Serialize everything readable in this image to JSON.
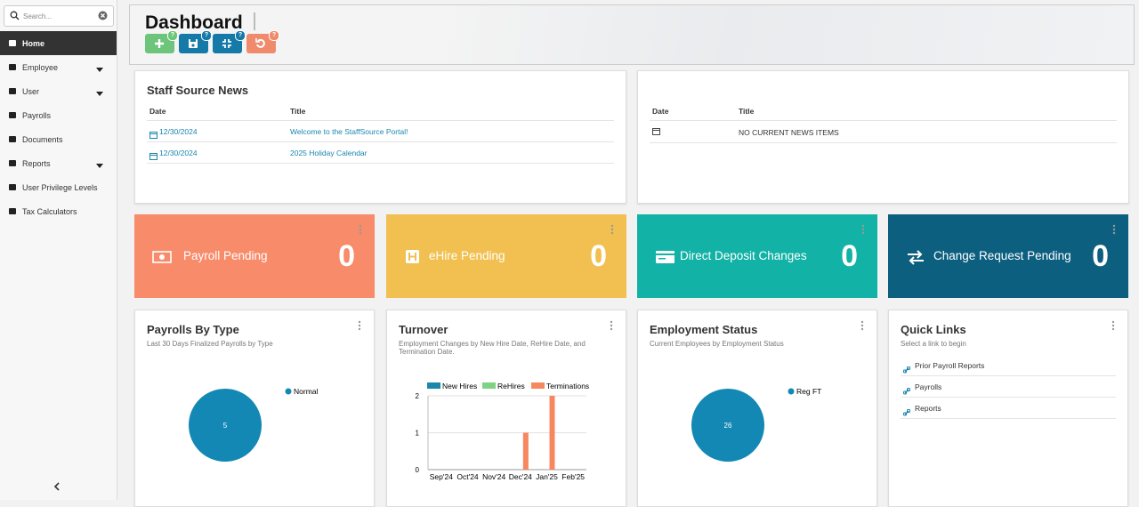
{
  "sidebar": {
    "search_placeholder": "Search...",
    "nav": [
      "Home",
      "Employee",
      "User",
      "Payrolls",
      "Documents",
      "Reports",
      "User Privilege Levels",
      "Tax Calculators"
    ]
  },
  "header": {
    "title": "Dashboard",
    "badge": "?"
  },
  "news": {
    "title": "Staff Source News",
    "columns": [
      "Date",
      "Title"
    ],
    "rows": [
      [
        "12/30/2024",
        "Welcome to the StaffSource Portal!"
      ],
      [
        "12/30/2024",
        "2025 Holiday Calendar"
      ]
    ]
  },
  "news2": {
    "columns": [
      "Date",
      "Title"
    ],
    "empty": "NO CURRENT NEWS ITEMS"
  },
  "tiles": [
    {
      "label": "Payroll Pending",
      "value": 0,
      "color": "#f78b6a"
    },
    {
      "label": "eHire Pending",
      "value": 0,
      "color": "#f1c050"
    },
    {
      "label": "Direct Deposit Changes",
      "value": 0,
      "color": "#13b2a6"
    },
    {
      "label": "Change Request Pending",
      "value": 0,
      "color": "#0d5f7f"
    }
  ],
  "chart_data": [
    {
      "type": "pie",
      "title": "Payrolls By Type",
      "subtitle": "Last 30 Days Finalized Payrolls by Type",
      "categories": [
        "Normal"
      ],
      "values": [
        5
      ],
      "colors": [
        "#1388b4"
      ]
    },
    {
      "type": "bar",
      "title": "Turnover",
      "subtitle": "Employment Changes by New Hire Date, ReHire Date, and Termination Date.",
      "categories": [
        "Sep'24",
        "Oct'24",
        "Nov'24",
        "Dec'24",
        "Jan'25",
        "Feb'25"
      ],
      "series": [
        {
          "name": "New Hires",
          "color": "#1a87ad",
          "values": [
            0,
            0,
            0,
            0,
            0,
            0
          ]
        },
        {
          "name": "ReHires",
          "color": "#7fd183",
          "values": [
            0,
            0,
            0,
            0,
            0,
            0
          ]
        },
        {
          "name": "Terminations",
          "color": "#f7875f",
          "values": [
            0,
            0,
            0,
            1,
            2,
            0
          ]
        }
      ],
      "ylim": [
        0,
        2
      ],
      "yticks": [
        0,
        1,
        2
      ],
      "grid": true
    },
    {
      "type": "pie",
      "title": "Employment Status",
      "subtitle": "Current Employees by Employment Status",
      "categories": [
        "Reg FT"
      ],
      "values": [
        26
      ],
      "colors": [
        "#1388b4"
      ]
    }
  ],
  "quick_links": {
    "title": "Quick Links",
    "subtitle": "Select a link to begin",
    "links": [
      "Prior Payroll Reports",
      "Payrolls",
      "Reports"
    ]
  }
}
